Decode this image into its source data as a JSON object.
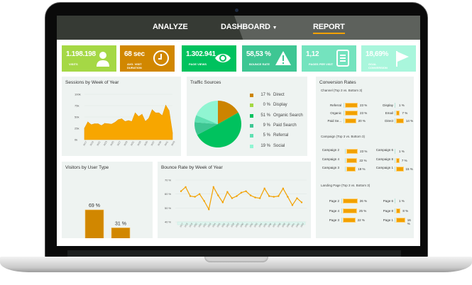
{
  "nav": {
    "items": [
      {
        "label": "ANALYZE"
      },
      {
        "label": "DASHBOARD"
      },
      {
        "label": "REPORT"
      }
    ],
    "dropdown_icon": "caret-down-icon",
    "active": "REPORT",
    "active_color": "#f2a100"
  },
  "kpis": [
    {
      "value": "1.198.198",
      "label": "VISITS",
      "icon": "user-icon",
      "color": "#a5d845"
    },
    {
      "value": "68 sec",
      "label": "AVG. VISIT DURATION",
      "icon": "clock-icon",
      "color": "#d18700"
    },
    {
      "value": "1.302.941",
      "label": "PAGE VIEWS",
      "icon": "eye-icon",
      "color": "#00c25e"
    },
    {
      "value": "58,53 %",
      "label": "BOUNCE RATE",
      "icon": "warning-icon",
      "color": "#3ec693"
    },
    {
      "value": "1,12",
      "label": "PAGES PER VISIT",
      "icon": "document-icon",
      "color": "#74e3be"
    },
    {
      "value": "18,69%",
      "label": "GOAL CONVERSION",
      "icon": "flag-icon",
      "color": "#a9f6dc"
    }
  ],
  "chart_data": [
    {
      "type": "area",
      "title": "Sessions by Week of Year",
      "ylim": [
        0,
        100
      ],
      "yticks": [
        "0k",
        "25k",
        "50k",
        "75k",
        "100k"
      ],
      "xticks": [
        "W17",
        "W19",
        "W21",
        "W23",
        "W25",
        "W27",
        "W29",
        "W31",
        "W33",
        "W35",
        "W37",
        "W39",
        "W41",
        "W43"
      ],
      "x": [
        "W17",
        "W18",
        "W19",
        "W20",
        "W21",
        "W22",
        "W23",
        "W24",
        "W25",
        "W26",
        "W27",
        "W28",
        "W29",
        "W30",
        "W31",
        "W32",
        "W33",
        "W34",
        "W35",
        "W36",
        "W37",
        "W38",
        "W39",
        "W40",
        "W41",
        "W42",
        "W43"
      ],
      "values": [
        25,
        39,
        33,
        35,
        35,
        31,
        36,
        35,
        34,
        38,
        44,
        46,
        40,
        42,
        40,
        59,
        51,
        56,
        40,
        47,
        66,
        59,
        59,
        53,
        76,
        64,
        15
      ],
      "color": "#f7a600"
    },
    {
      "type": "pie",
      "title": "Traffic Sources",
      "slices": [
        {
          "label": "Direct",
          "value": 17,
          "pct": "17 %",
          "color": "#cc8400"
        },
        {
          "label": "Display",
          "value": 0,
          "pct": "0 %",
          "color": "#a4d843"
        },
        {
          "label": "Organic Search",
          "value": 51,
          "pct": "51 %",
          "color": "#00c25e"
        },
        {
          "label": "Paid Search",
          "value": 9,
          "pct": "9 %",
          "color": "#3ec693"
        },
        {
          "label": "Referral",
          "value": 5,
          "pct": "5 %",
          "color": "#5fe0b2"
        },
        {
          "label": "Social",
          "value": 19,
          "pct": "19 %",
          "color": "#90f5d2"
        }
      ]
    },
    {
      "type": "bar",
      "title": "Visitors by User Type",
      "categories": [
        "New",
        "Returning"
      ],
      "values": [
        69,
        31
      ],
      "labels": [
        "69 %",
        "31 %"
      ],
      "color": "#d18700"
    },
    {
      "type": "line",
      "title": "Bounce Rate by Week of Year",
      "ylim": [
        40,
        70
      ],
      "yticks": [
        "40 %",
        "50 %",
        "60 %",
        "70 %"
      ],
      "x": [
        "W17",
        "W18",
        "W19",
        "W20",
        "W21",
        "W22",
        "W23",
        "W24",
        "W25",
        "W26",
        "W27",
        "W28",
        "W29",
        "W30",
        "W31",
        "W32",
        "W33",
        "W34",
        "W35",
        "W36",
        "W37",
        "W38",
        "W39",
        "W40",
        "W41",
        "W42",
        "W43"
      ],
      "values": [
        62,
        65,
        58.5,
        58,
        60,
        55,
        49,
        65,
        59,
        54,
        61.5,
        57,
        58.5,
        61,
        62,
        59,
        57.5,
        57,
        64,
        58.5,
        58,
        58.5,
        64,
        58,
        52,
        57,
        54
      ],
      "color": "#f2a100"
    }
  ],
  "conversion": {
    "title": "Conversion Rates",
    "sections": [
      {
        "title": "Channel (Top 3 vs. Bottom 3)",
        "top": [
          {
            "label": "Referral",
            "value": 23,
            "pct": "23 %"
          },
          {
            "label": "Organic",
            "value": 23,
            "pct": "23 %"
          },
          {
            "label": "Paid Se...",
            "value": 20,
            "pct": "20 %"
          }
        ],
        "bottom": [
          {
            "label": "Display",
            "value": 1,
            "pct": "1 %"
          },
          {
            "label": "Email",
            "value": 7,
            "pct": "7 %"
          },
          {
            "label": "Direct",
            "value": 14,
            "pct": "14 %"
          }
        ]
      },
      {
        "title": "Campaign (Top 3 vs. Bottom 3)",
        "top": [
          {
            "label": "Campaign 2",
            "value": 23,
            "pct": "23 %"
          },
          {
            "label": "Campaign 4",
            "value": 22,
            "pct": "22 %"
          },
          {
            "label": "Campaign 3",
            "value": 19,
            "pct": "19 %"
          }
        ],
        "bottom": [
          {
            "label": "Campaign 6",
            "value": 1,
            "pct": "1 %"
          },
          {
            "label": "Campaign 8",
            "value": 7,
            "pct": "7 %"
          },
          {
            "label": "Campaign 1",
            "value": 15,
            "pct": "15 %"
          }
        ]
      },
      {
        "title": "Landing Page (Top 3 vs. Bottom 3)",
        "top": [
          {
            "label": "Page 2",
            "value": 26,
            "pct": "26 %"
          },
          {
            "label": "Page 4",
            "value": 25,
            "pct": "25 %"
          },
          {
            "label": "Page 3",
            "value": 22,
            "pct": "22 %"
          }
        ],
        "bottom": [
          {
            "label": "Page 6",
            "value": 1,
            "pct": "1 %"
          },
          {
            "label": "Page 8",
            "value": 8,
            "pct": "8 %"
          },
          {
            "label": "Page 1",
            "value": 16,
            "pct": "16 %"
          }
        ]
      }
    ]
  }
}
